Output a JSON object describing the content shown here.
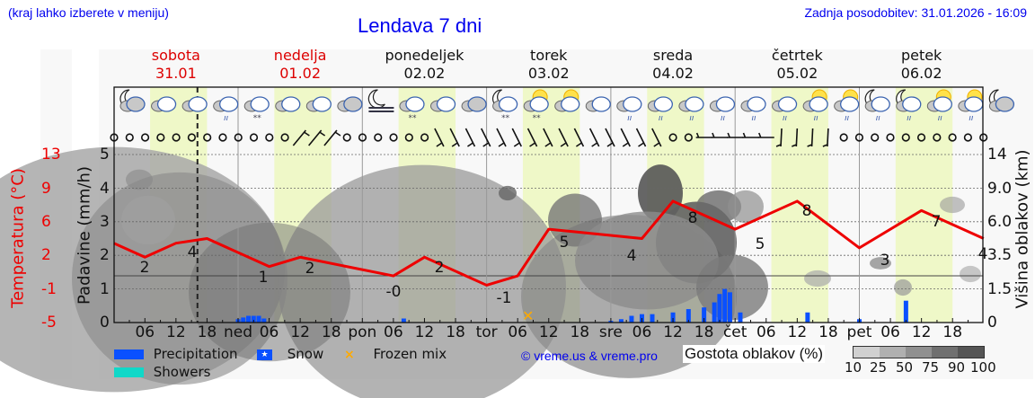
{
  "header": {
    "location_hint": "(kraj lahko izberete v meniju)",
    "title": "Lendava 7 dni",
    "last_update": "Zadnja posodobitev: 31.01.2026 - 16:09"
  },
  "days": [
    {
      "name": "sobota",
      "date": "31.01",
      "weekend": true
    },
    {
      "name": "nedelja",
      "date": "01.02",
      "weekend": true
    },
    {
      "name": "ponedeljek",
      "date": "02.02",
      "weekend": false
    },
    {
      "name": "torek",
      "date": "03.02",
      "weekend": false
    },
    {
      "name": "sreda",
      "date": "04.02",
      "weekend": false
    },
    {
      "name": "četrtek",
      "date": "05.02",
      "weekend": false
    },
    {
      "name": "petek",
      "date": "06.02",
      "weekend": false
    }
  ],
  "axes": {
    "temp_label": "Temperatura (°C)",
    "temp_ticks": [
      "13",
      "9",
      "6",
      "2",
      "-1",
      "-5"
    ],
    "precip_label": "Padavine (mm/h)",
    "precip_ticks": [
      "5",
      "4",
      "3",
      "2",
      "1",
      "0"
    ],
    "cloud_label": "Višina oblakov (km)",
    "cloud_ticks": [
      "14",
      "9.0",
      "6.0",
      "3.5",
      "1.5",
      "0"
    ],
    "x_ticks": [
      "06",
      "12",
      "18",
      "ned",
      "06",
      "12",
      "18",
      "pon",
      "06",
      "12",
      "18",
      "tor",
      "06",
      "12",
      "18",
      "sre",
      "06",
      "12",
      "18",
      "čet",
      "06",
      "12",
      "18",
      "pet",
      "06",
      "12",
      "18"
    ]
  },
  "legend": {
    "precipitation": "Precipitation",
    "snow": "Snow",
    "frozen_mix": "Frozen mix",
    "showers": "Showers",
    "credit": "© vreme.us & vreme.pro",
    "cloud_density_label": "Gostota oblakov (%)",
    "cloud_density_ticks": [
      "10",
      "25",
      "50",
      "75",
      "90",
      "100"
    ],
    "colors": {
      "precipitation": "#0a50ff",
      "showers": "#10d8c8",
      "frozen_mix": "#ffaa00",
      "temperature": "#ee0000",
      "daylight": "#eff8c8"
    }
  },
  "chart_data": {
    "type": "line",
    "title": "Lendava 7 dni",
    "xlabel": "",
    "ylabel": "Temperatura (°C) / Padavine (mm/h)",
    "y2label": "Višina oblakov (km)",
    "temperature": {
      "name": "Temperatura",
      "unit": "°C",
      "ylim": [
        -5,
        13
      ],
      "points": [
        {
          "t": "sob 00",
          "v": 3.5
        },
        {
          "t": "sob 06",
          "v": 2
        },
        {
          "t": "sob 12",
          "v": 3.5
        },
        {
          "t": "sob 18",
          "v": 4
        },
        {
          "t": "ned 06",
          "v": 1
        },
        {
          "t": "ned 12",
          "v": 2
        },
        {
          "t": "pon 06",
          "v": 0
        },
        {
          "t": "pon 12",
          "v": 2
        },
        {
          "t": "tor 00",
          "v": -1
        },
        {
          "t": "tor 06",
          "v": 0
        },
        {
          "t": "tor 12",
          "v": 5
        },
        {
          "t": "sre 06",
          "v": 4
        },
        {
          "t": "sre 12",
          "v": 8
        },
        {
          "t": "čet 00",
          "v": 5
        },
        {
          "t": "čet 12",
          "v": 8
        },
        {
          "t": "pet 00",
          "v": 3
        },
        {
          "t": "pet 12",
          "v": 7
        },
        {
          "t": "sob 00",
          "v": 4
        }
      ],
      "labels": [
        {
          "t": "sob 06",
          "text": "2"
        },
        {
          "t": "sob 15",
          "text": "4"
        },
        {
          "t": "ned 06",
          "text": "1"
        },
        {
          "t": "ned 13",
          "text": "2"
        },
        {
          "t": "pon 06",
          "text": "-0"
        },
        {
          "t": "pon 12",
          "text": "2"
        },
        {
          "t": "tor 00",
          "text": "-1"
        },
        {
          "t": "tor 12",
          "text": "5"
        },
        {
          "t": "sre 00",
          "text": "4"
        },
        {
          "t": "sre 12",
          "text": "8"
        },
        {
          "t": "čet 00",
          "text": "5"
        },
        {
          "t": "čet 12",
          "text": "8"
        },
        {
          "t": "pet 00",
          "text": "3"
        },
        {
          "t": "pet 12",
          "text": "7"
        },
        {
          "t": "sob 00",
          "text": "4"
        }
      ]
    },
    "precipitation_mm_h": {
      "ylim": [
        0,
        5
      ],
      "bars": [
        {
          "t": "ned 00",
          "v": 0.1
        },
        {
          "t": "ned 01",
          "v": 0.15
        },
        {
          "t": "ned 02",
          "v": 0.2
        },
        {
          "t": "ned 03",
          "v": 0.2
        },
        {
          "t": "ned 04",
          "v": 0.2
        },
        {
          "t": "ned 05",
          "v": 0.12
        },
        {
          "t": "pon 08",
          "v": 0.12
        },
        {
          "t": "sre 00",
          "v": 0.05
        },
        {
          "t": "sre 02",
          "v": 0.1
        },
        {
          "t": "sre 04",
          "v": 0.2
        },
        {
          "t": "sre 06",
          "v": 0.25
        },
        {
          "t": "sre 08",
          "v": 0.25
        },
        {
          "t": "sre 12",
          "v": 0.3
        },
        {
          "t": "sre 15",
          "v": 0.4
        },
        {
          "t": "sre 18",
          "v": 0.45
        },
        {
          "t": "sre 20",
          "v": 0.6
        },
        {
          "t": "sre 21",
          "v": 0.85
        },
        {
          "t": "sre 22",
          "v": 1.0
        },
        {
          "t": "sre 23",
          "v": 0.9
        },
        {
          "t": "čet 01",
          "v": 0.3
        },
        {
          "t": "čet 14",
          "v": 0.3
        },
        {
          "t": "pet 00",
          "v": 0.1
        },
        {
          "t": "pet 09",
          "v": 0.65
        }
      ]
    },
    "frozen_mix": [
      {
        "t": "tor 08"
      }
    ],
    "cloud_height_km_ticks": [
      0,
      1.5,
      3.5,
      6.0,
      9.0,
      14
    ],
    "cloud_density_pct_scale": [
      10,
      25,
      50,
      75,
      90,
      100
    ],
    "current_time_marker": "sob 16:09",
    "grid": true
  }
}
